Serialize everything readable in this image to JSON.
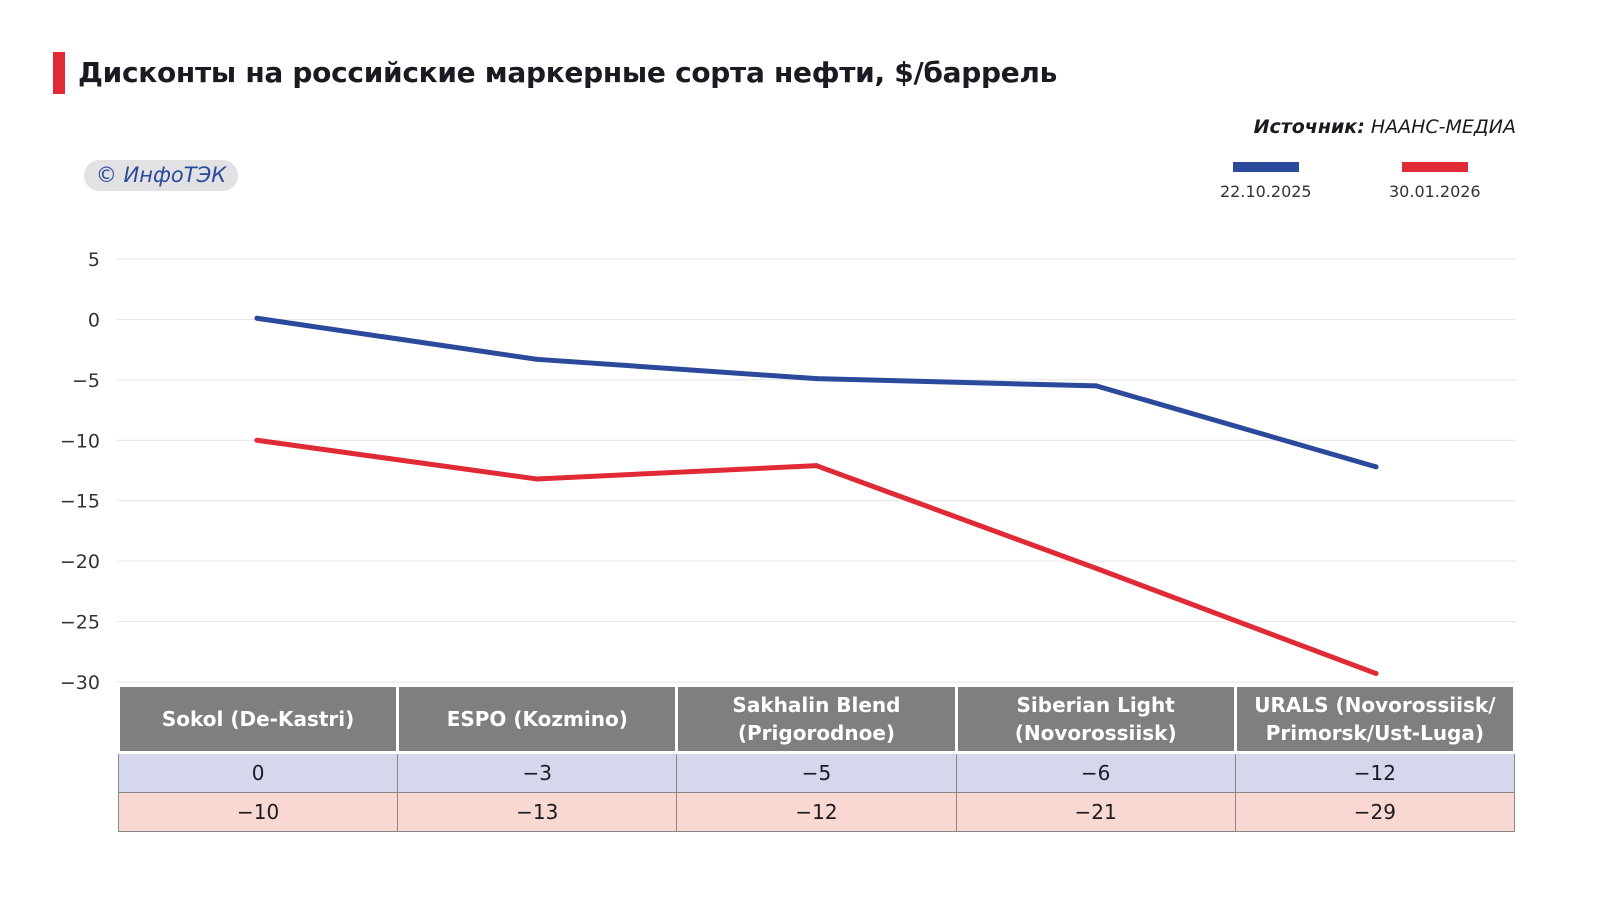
{
  "title": "Дисконты на российские маркерные сорта нефти, $/баррель",
  "source_label": "Источник:",
  "source_value": "НААНС-МЕДИА",
  "logo": "© ИнфоТЭК",
  "chart_data": {
    "type": "line",
    "title": "Дисконты на российские маркерные сорта нефти, $/баррель",
    "categories": [
      "Sokol (De-Kastri)",
      "ESPO (Kozmino)",
      "Sakhalin Blend (Prigorodnoe)",
      "Siberian Light (Novorossiisk)",
      "URALS (Novorossiisk/ Primorsk/Ust-Luga)"
    ],
    "series": [
      {
        "name": "22.10.2025",
        "color": "#2b4a9b",
        "values": [
          0.1,
          -3.3,
          -4.9,
          -5.5,
          -12.2
        ],
        "table_values": [
          "0",
          "−3",
          "−5",
          "−6",
          "−12"
        ]
      },
      {
        "name": "30.01.2026",
        "color": "#e02a36",
        "values": [
          -10,
          -13.2,
          -12.1,
          -20.6,
          -29.3
        ],
        "table_values": [
          "−10",
          "−13",
          "−12",
          "−21",
          "−29"
        ]
      }
    ],
    "ylim": [
      -30,
      5
    ],
    "yticks": [
      5,
      0,
      -5,
      -10,
      -15,
      -20,
      -25,
      -30
    ],
    "ytick_labels": [
      "5",
      "0",
      "−5",
      "−10",
      "−15",
      "−20",
      "−25",
      "−30"
    ],
    "grid": true,
    "legend": "top-right"
  }
}
